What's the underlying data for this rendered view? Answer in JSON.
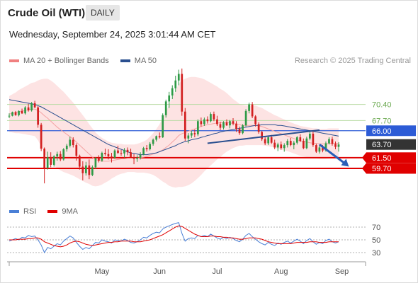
{
  "header": {
    "title": "Crude Oil (WTI)",
    "timeframe": "DAILY",
    "datetime": "Wednesday, September 24, 2025 3:01:44 AM CET"
  },
  "legend": {
    "ma20_label": "MA 20 + Bollinger Bands",
    "ma20_color": "#f08080",
    "ma50_label": "MA 50",
    "ma50_color": "#2a4f8f",
    "credit": "Research © 2025 Trading Central"
  },
  "rsi_legend": {
    "rsi_label": "RSI",
    "rsi_color": "#4a7fd6",
    "ma9_label": "9MA",
    "ma9_color": "#e00000"
  },
  "months": [
    "May",
    "Jun",
    "Jul",
    "Aug",
    "Sep"
  ],
  "levels": [
    {
      "value": 70.4,
      "label": "70.40",
      "kind": "resistance-light"
    },
    {
      "value": 67.7,
      "label": "67.70",
      "kind": "resistance-light"
    },
    {
      "value": 66.0,
      "label": "66.00",
      "kind": "pivot"
    },
    {
      "value": 63.7,
      "label": "63.70",
      "kind": "last"
    },
    {
      "value": 61.5,
      "label": "61.50",
      "kind": "support"
    },
    {
      "value": 59.7,
      "label": "59.70",
      "kind": "support"
    }
  ],
  "chart_data": {
    "type": "candlestick",
    "ylim": [
      54.5,
      76.5
    ],
    "candles": [
      [
        68.5,
        68.9,
        68.1,
        68.5
      ],
      [
        68.5,
        69.2,
        68.4,
        69.1
      ],
      [
        69.1,
        69.3,
        68.5,
        68.6
      ],
      [
        68.6,
        69.4,
        68.4,
        69.3
      ],
      [
        69.3,
        69.7,
        68.8,
        68.9
      ],
      [
        68.9,
        70.1,
        68.7,
        69.9
      ],
      [
        69.9,
        70.5,
        69.2,
        69.4
      ],
      [
        69.4,
        70.8,
        69.2,
        70.6
      ],
      [
        70.6,
        71.0,
        69.8,
        69.9
      ],
      [
        69.9,
        70.1,
        66.5,
        67.0
      ],
      [
        67.0,
        67.3,
        62.6,
        63.0
      ],
      [
        63.0,
        63.2,
        57.2,
        59.8
      ],
      [
        59.8,
        62.5,
        59.5,
        61.6
      ],
      [
        61.6,
        62.4,
        59.9,
        60.3
      ],
      [
        60.3,
        61.9,
        60.0,
        61.7
      ],
      [
        61.7,
        62.5,
        61.0,
        62.1
      ],
      [
        62.1,
        62.6,
        60.9,
        61.2
      ],
      [
        61.2,
        63.1,
        61.0,
        62.9
      ],
      [
        62.9,
        63.8,
        62.5,
        63.5
      ],
      [
        63.5,
        65.0,
        63.2,
        64.5
      ],
      [
        64.5,
        64.9,
        63.2,
        63.6
      ],
      [
        63.6,
        63.9,
        61.0,
        61.8
      ],
      [
        61.8,
        62.0,
        59.5,
        60.0
      ],
      [
        60.0,
        60.9,
        57.7,
        58.9
      ],
      [
        58.9,
        60.8,
        58.5,
        60.2
      ],
      [
        60.2,
        61.2,
        57.9,
        58.6
      ],
      [
        58.6,
        60.2,
        58.4,
        59.9
      ],
      [
        59.9,
        61.6,
        59.6,
        61.4
      ],
      [
        61.4,
        61.9,
        60.7,
        61.0
      ],
      [
        61.0,
        62.5,
        60.8,
        62.3
      ],
      [
        62.3,
        63.0,
        61.8,
        62.1
      ],
      [
        62.1,
        62.9,
        61.2,
        61.7
      ],
      [
        61.7,
        62.3,
        60.7,
        61.5
      ],
      [
        61.5,
        62.9,
        61.3,
        62.7
      ],
      [
        62.7,
        63.5,
        62.1,
        62.3
      ],
      [
        62.3,
        62.8,
        61.8,
        62.2
      ],
      [
        62.2,
        63.1,
        61.5,
        62.8
      ],
      [
        62.8,
        63.2,
        61.9,
        62.4
      ],
      [
        62.4,
        63.0,
        61.7,
        61.6
      ],
      [
        61.6,
        62.1,
        60.4,
        61.3
      ],
      [
        61.3,
        61.9,
        60.8,
        61.5
      ],
      [
        61.5,
        62.4,
        61.2,
        62.0
      ],
      [
        62.0,
        63.3,
        61.9,
        63.1
      ],
      [
        63.1,
        63.6,
        62.5,
        62.9
      ],
      [
        62.9,
        64.1,
        62.7,
        63.8
      ],
      [
        63.8,
        64.7,
        63.5,
        64.5
      ],
      [
        64.5,
        65.2,
        64.2,
        65.1
      ],
      [
        65.1,
        65.7,
        64.7,
        64.9
      ],
      [
        64.9,
        68.9,
        64.8,
        68.6
      ],
      [
        68.6,
        71.2,
        68.2,
        70.9
      ],
      [
        70.9,
        72.5,
        69.8,
        71.9
      ],
      [
        71.9,
        73.6,
        71.3,
        73.1
      ],
      [
        73.1,
        75.2,
        72.5,
        74.4
      ],
      [
        74.4,
        76.2,
        73.6,
        75.5
      ],
      [
        75.5,
        76.4,
        68.5,
        69.2
      ],
      [
        69.2,
        69.8,
        64.3,
        64.7
      ],
      [
        64.7,
        65.6,
        63.9,
        65.2
      ],
      [
        65.2,
        66.0,
        64.8,
        65.6
      ],
      [
        65.6,
        66.2,
        64.9,
        65.4
      ],
      [
        65.4,
        67.9,
        65.1,
        67.6
      ],
      [
        67.6,
        68.2,
        66.7,
        67.1
      ],
      [
        67.1,
        68.2,
        66.8,
        67.9
      ],
      [
        67.9,
        68.4,
        67.2,
        67.6
      ],
      [
        67.6,
        69.1,
        67.4,
        68.8
      ],
      [
        68.8,
        69.2,
        67.6,
        67.9
      ],
      [
        67.9,
        68.5,
        66.8,
        67.1
      ],
      [
        67.1,
        67.5,
        66.1,
        66.5
      ],
      [
        66.5,
        67.6,
        66.2,
        67.4
      ],
      [
        67.4,
        67.9,
        66.8,
        66.9
      ],
      [
        66.9,
        67.8,
        66.4,
        67.6
      ],
      [
        67.6,
        68.1,
        66.9,
        67.2
      ],
      [
        67.2,
        67.6,
        65.8,
        66.3
      ],
      [
        66.3,
        66.7,
        65.3,
        65.6
      ],
      [
        65.6,
        67.1,
        65.4,
        66.9
      ],
      [
        66.9,
        69.6,
        66.7,
        69.3
      ],
      [
        69.3,
        70.7,
        68.9,
        70.4
      ],
      [
        70.4,
        70.8,
        68.1,
        68.4
      ],
      [
        68.4,
        68.6,
        66.7,
        67.1
      ],
      [
        67.1,
        67.4,
        65.5,
        65.8
      ],
      [
        65.8,
        66.0,
        64.3,
        64.6
      ],
      [
        64.6,
        64.9,
        63.6,
        63.9
      ],
      [
        63.9,
        65.2,
        63.6,
        64.9
      ],
      [
        64.9,
        65.3,
        63.8,
        64.0
      ],
      [
        64.0,
        64.5,
        62.9,
        63.2
      ],
      [
        63.2,
        64.0,
        62.6,
        63.7
      ],
      [
        63.7,
        64.2,
        62.8,
        63.1
      ],
      [
        63.1,
        63.9,
        62.5,
        63.6
      ],
      [
        63.6,
        64.6,
        63.2,
        64.3
      ],
      [
        64.3,
        64.8,
        63.4,
        63.6
      ],
      [
        63.6,
        64.3,
        62.9,
        64.0
      ],
      [
        64.0,
        65.1,
        63.7,
        64.9
      ],
      [
        64.9,
        65.4,
        64.1,
        64.3
      ],
      [
        64.3,
        64.7,
        62.9,
        63.1
      ],
      [
        63.1,
        65.0,
        62.9,
        64.7
      ],
      [
        64.7,
        65.8,
        64.4,
        65.5
      ],
      [
        65.5,
        65.9,
        63.3,
        63.6
      ],
      [
        63.6,
        63.8,
        62.3,
        62.5
      ],
      [
        62.5,
        63.5,
        62.2,
        63.2
      ],
      [
        63.2,
        63.6,
        62.4,
        62.7
      ],
      [
        62.7,
        64.2,
        62.5,
        63.9
      ],
      [
        63.9,
        64.9,
        63.7,
        64.6
      ],
      [
        64.6,
        65.0,
        63.5,
        63.8
      ],
      [
        63.8,
        64.2,
        62.9,
        63.3
      ],
      [
        63.3,
        64.1,
        62.5,
        63.7
      ]
    ],
    "ma20": [
      68.8,
      68.9,
      69.0,
      69.2,
      69.3,
      69.4,
      69.5,
      69.6,
      69.6,
      69.4,
      69.0,
      68.5,
      68.1,
      67.6,
      67.1,
      66.6,
      66.2,
      65.8,
      65.4,
      65.0,
      64.6,
      64.1,
      63.6,
      63.1,
      62.6,
      62.1,
      61.6,
      61.2,
      61.0,
      60.9,
      60.9,
      60.9,
      61.0,
      61.1,
      61.2,
      61.3,
      61.3,
      61.4,
      61.4,
      61.4,
      61.4,
      61.5,
      61.6,
      61.7,
      61.9,
      62.1,
      62.3,
      62.5,
      62.8,
      63.2,
      63.6,
      64.1,
      64.6,
      65.2,
      65.5,
      65.7,
      65.9,
      66.1,
      66.3,
      66.5,
      66.7,
      66.9,
      67.0,
      67.1,
      67.2,
      67.3,
      67.3,
      67.4,
      67.4,
      67.3,
      67.2,
      67.1,
      67.0,
      66.9,
      66.9,
      66.9,
      66.9,
      66.9,
      66.8,
      66.7,
      66.5,
      66.3,
      66.1,
      65.9,
      65.7,
      65.5,
      65.3,
      65.1,
      64.9,
      64.7,
      64.5,
      64.3,
      64.2,
      64.1,
      64.0,
      63.9,
      63.9,
      63.8,
      63.8,
      63.8,
      63.9,
      63.9,
      63.9,
      63.9
    ],
    "ma50": [
      71.2,
      71.1,
      71.0,
      70.9,
      70.8,
      70.7,
      70.6,
      70.5,
      70.4,
      70.2,
      70.0,
      69.7,
      69.4,
      69.1,
      68.8,
      68.5,
      68.2,
      67.9,
      67.6,
      67.3,
      67.0,
      66.7,
      66.4,
      66.1,
      65.8,
      65.5,
      65.2,
      64.9,
      64.6,
      64.3,
      64.0,
      63.7,
      63.5,
      63.3,
      63.1,
      62.9,
      62.7,
      62.5,
      62.3,
      62.2,
      62.1,
      62.0,
      62.0,
      62.0,
      62.1,
      62.2,
      62.3,
      62.5,
      62.7,
      62.9,
      63.1,
      63.3,
      63.5,
      63.8,
      64.0,
      64.2,
      64.3,
      64.5,
      64.6,
      64.7,
      64.9,
      65.0,
      65.2,
      65.3,
      65.5,
      65.6,
      65.8,
      65.9,
      66.0,
      66.1,
      66.2,
      66.3,
      66.4,
      66.5,
      66.6,
      66.7,
      66.8,
      66.9,
      66.9,
      67.0,
      67.0,
      67.0,
      67.0,
      67.0,
      66.9,
      66.9,
      66.8,
      66.7,
      66.6,
      66.5,
      66.4,
      66.3,
      66.2,
      66.1,
      66.0,
      65.9,
      65.8,
      65.7,
      65.6,
      65.5,
      65.4,
      65.3,
      65.2,
      65.1
    ],
    "bb_width": [
      3.0,
      3.2,
      3.4,
      3.6,
      3.8,
      4.0,
      4.2,
      4.4,
      4.5,
      5.0,
      5.6,
      6.2,
      6.6,
      6.8,
      6.9,
      6.9,
      6.8,
      6.7,
      6.5,
      6.3,
      6.1,
      5.9,
      5.7,
      5.5,
      5.3,
      5.0,
      4.8,
      4.5,
      4.2,
      3.9,
      3.6,
      3.3,
      3.0,
      2.8,
      2.6,
      2.5,
      2.4,
      2.3,
      2.3,
      2.3,
      2.4,
      2.5,
      2.6,
      2.8,
      3.1,
      3.5,
      4.0,
      4.6,
      5.3,
      6.0,
      6.8,
      7.5,
      8.1,
      8.6,
      8.9,
      9.0,
      9.0,
      8.9,
      8.7,
      8.4,
      8.1,
      7.7,
      7.3,
      6.9,
      6.5,
      6.1,
      5.7,
      5.3,
      4.9,
      4.5,
      4.1,
      3.8,
      3.5,
      3.4,
      3.3,
      3.3,
      3.3,
      3.3,
      3.2,
      3.1,
      3.0,
      2.9,
      2.8,
      2.7,
      2.7,
      2.6,
      2.6,
      2.5,
      2.5,
      2.5,
      2.5,
      2.5,
      2.5,
      2.5,
      2.5,
      2.5,
      2.5,
      2.5,
      2.5,
      2.5,
      2.5,
      2.5,
      2.5,
      2.5
    ],
    "trendline": {
      "from": [
        62,
        63.9
      ],
      "to": [
        97,
        66.1
      ]
    },
    "forecast_arrow": {
      "from": [
        97,
        63.7
      ],
      "to": [
        104,
        60.0
      ]
    },
    "month_index": {
      "May": 29,
      "Jun": 47,
      "Jul": 65,
      "Aug": 85,
      "Sep": 104
    }
  },
  "rsi": {
    "ticks": [
      "70",
      "50",
      "30"
    ],
    "ylim": [
      20,
      80
    ],
    "values": [
      48,
      50,
      52,
      50,
      54,
      53,
      57,
      55,
      56,
      50,
      42,
      30,
      38,
      36,
      40,
      44,
      42,
      48,
      52,
      56,
      53,
      46,
      40,
      35,
      38,
      36,
      41,
      46,
      45,
      50,
      48,
      47,
      45,
      50,
      49,
      48,
      51,
      49,
      46,
      45,
      47,
      50,
      54,
      53,
      57,
      60,
      62,
      61,
      67,
      70,
      72,
      74,
      76,
      77,
      60,
      48,
      52,
      53,
      52,
      57,
      55,
      57,
      55,
      59,
      56,
      53,
      51,
      54,
      52,
      54,
      52,
      49,
      47,
      51,
      57,
      60,
      55,
      51,
      47,
      44,
      42,
      46,
      43,
      41,
      45,
      43,
      46,
      48,
      45,
      48,
      51,
      48,
      44,
      49,
      52,
      47,
      43,
      46,
      44,
      49,
      51,
      47,
      45,
      47
    ],
    "ma9": [
      50,
      50,
      50,
      51,
      51,
      51,
      52,
      52,
      53,
      53,
      51,
      47,
      45,
      43,
      41,
      40,
      39,
      40,
      42,
      45,
      47,
      48,
      47,
      45,
      43,
      42,
      41,
      42,
      43,
      44,
      45,
      46,
      46,
      47,
      47,
      48,
      48,
      48,
      48,
      47,
      47,
      47,
      48,
      49,
      50,
      52,
      54,
      56,
      58,
      61,
      64,
      67,
      70,
      72,
      71,
      68,
      65,
      62,
      59,
      57,
      55,
      55,
      55,
      56,
      56,
      55,
      55,
      54,
      54,
      53,
      53,
      52,
      51,
      51,
      52,
      53,
      53,
      53,
      52,
      51,
      49,
      47,
      46,
      45,
      44,
      44,
      44,
      44,
      44,
      45,
      46,
      46,
      46,
      46,
      47,
      47,
      47,
      46,
      46,
      46,
      47,
      47,
      47,
      47
    ]
  }
}
